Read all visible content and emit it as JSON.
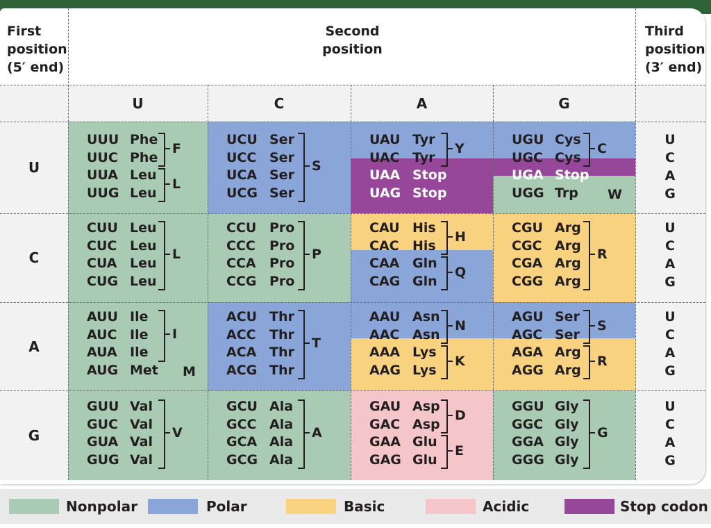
{
  "headers": {
    "first": [
      "First",
      "position",
      "(5′ end)"
    ],
    "second": [
      "Second",
      "position"
    ],
    "third": [
      "Third",
      "position",
      "(3′ end)"
    ]
  },
  "second_bases": [
    "U",
    "C",
    "A",
    "G"
  ],
  "first_bases": [
    "U",
    "C",
    "A",
    "G"
  ],
  "third_bases": [
    "U",
    "C",
    "A",
    "G"
  ],
  "colors": {
    "Nonpolar": "#a9cbb3",
    "Polar": "#8aa6d8",
    "Basic": "#f8d27e",
    "Acidic": "#f4c6c9",
    "Stop codon": "#96479a"
  },
  "legend": [
    {
      "label": "Nonpolar",
      "class": "Nonpolar"
    },
    {
      "label": "Polar",
      "class": "Polar"
    },
    {
      "label": "Basic",
      "class": "Basic"
    },
    {
      "label": "Acidic",
      "class": "Acidic"
    },
    {
      "label": "Stop codon",
      "class": "Stop codon"
    }
  ],
  "cells": [
    [
      {
        "codons": [
          [
            "UUU",
            "Phe"
          ],
          [
            "UUC",
            "Phe"
          ],
          [
            "UUA",
            "Leu"
          ],
          [
            "UUG",
            "Leu"
          ]
        ],
        "bands": [
          {
            "rows": [
              0,
              3
            ],
            "class": "Nonpolar"
          }
        ],
        "groups": [
          {
            "rows": [
              0,
              1
            ],
            "letter": "F"
          },
          {
            "rows": [
              2,
              3
            ],
            "letter": "L"
          }
        ]
      },
      {
        "codons": [
          [
            "UCU",
            "Ser"
          ],
          [
            "UCC",
            "Ser"
          ],
          [
            "UCA",
            "Ser"
          ],
          [
            "UCG",
            "Ser"
          ]
        ],
        "bands": [
          {
            "rows": [
              0,
              3
            ],
            "class": "Polar"
          }
        ],
        "groups": [
          {
            "rows": [
              0,
              3
            ],
            "letter": "S"
          }
        ]
      },
      {
        "codons": [
          [
            "UAU",
            "Tyr"
          ],
          [
            "UAC",
            "Tyr"
          ],
          [
            "UAA",
            "Stop"
          ],
          [
            "UAG",
            "Stop"
          ]
        ],
        "bands": [
          {
            "rows": [
              0,
              1
            ],
            "class": "Polar"
          },
          {
            "rows": [
              2,
              3
            ],
            "class": "Stop codon"
          }
        ],
        "groups": [
          {
            "rows": [
              0,
              1
            ],
            "letter": "Y"
          }
        ]
      },
      {
        "codons": [
          [
            "UGU",
            "Cys"
          ],
          [
            "UGC",
            "Cys"
          ],
          [
            "UGA",
            "Stop"
          ],
          [
            "UGG",
            "Trp"
          ]
        ],
        "bands": [
          {
            "rows": [
              0,
              1
            ],
            "class": "Polar"
          },
          {
            "rows": [
              2,
              2
            ],
            "class": "Stop codon"
          },
          {
            "rows": [
              3,
              3
            ],
            "class": "Nonpolar"
          }
        ],
        "groups": [
          {
            "rows": [
              0,
              1
            ],
            "letter": "C"
          },
          {
            "rows": [
              3,
              3
            ],
            "letter": "W",
            "plain": true
          }
        ]
      }
    ],
    [
      {
        "codons": [
          [
            "CUU",
            "Leu"
          ],
          [
            "CUC",
            "Leu"
          ],
          [
            "CUA",
            "Leu"
          ],
          [
            "CUG",
            "Leu"
          ]
        ],
        "bands": [
          {
            "rows": [
              0,
              3
            ],
            "class": "Nonpolar"
          }
        ],
        "groups": [
          {
            "rows": [
              0,
              3
            ],
            "letter": "L"
          }
        ]
      },
      {
        "codons": [
          [
            "CCU",
            "Pro"
          ],
          [
            "CCC",
            "Pro"
          ],
          [
            "CCA",
            "Pro"
          ],
          [
            "CCG",
            "Pro"
          ]
        ],
        "bands": [
          {
            "rows": [
              0,
              3
            ],
            "class": "Nonpolar"
          }
        ],
        "groups": [
          {
            "rows": [
              0,
              3
            ],
            "letter": "P"
          }
        ]
      },
      {
        "codons": [
          [
            "CAU",
            "His"
          ],
          [
            "CAC",
            "His"
          ],
          [
            "CAA",
            "Gln"
          ],
          [
            "CAG",
            "Gln"
          ]
        ],
        "bands": [
          {
            "rows": [
              0,
              1
            ],
            "class": "Basic"
          },
          {
            "rows": [
              2,
              3
            ],
            "class": "Polar"
          }
        ],
        "groups": [
          {
            "rows": [
              0,
              1
            ],
            "letter": "H"
          },
          {
            "rows": [
              2,
              3
            ],
            "letter": "Q"
          }
        ]
      },
      {
        "codons": [
          [
            "CGU",
            "Arg"
          ],
          [
            "CGC",
            "Arg"
          ],
          [
            "CGA",
            "Arg"
          ],
          [
            "CGG",
            "Arg"
          ]
        ],
        "bands": [
          {
            "rows": [
              0,
              3
            ],
            "class": "Basic"
          }
        ],
        "groups": [
          {
            "rows": [
              0,
              3
            ],
            "letter": "R"
          }
        ]
      }
    ],
    [
      {
        "codons": [
          [
            "AUU",
            "Ile"
          ],
          [
            "AUC",
            "Ile"
          ],
          [
            "AUA",
            "Ile"
          ],
          [
            "AUG",
            "Met"
          ]
        ],
        "bands": [
          {
            "rows": [
              0,
              3
            ],
            "class": "Nonpolar"
          }
        ],
        "groups": [
          {
            "rows": [
              0,
              2
            ],
            "letter": "I"
          },
          {
            "rows": [
              3,
              3
            ],
            "letter": "M",
            "plain": true
          }
        ]
      },
      {
        "codons": [
          [
            "ACU",
            "Thr"
          ],
          [
            "ACC",
            "Thr"
          ],
          [
            "ACA",
            "Thr"
          ],
          [
            "ACG",
            "Thr"
          ]
        ],
        "bands": [
          {
            "rows": [
              0,
              3
            ],
            "class": "Polar"
          }
        ],
        "groups": [
          {
            "rows": [
              0,
              3
            ],
            "letter": "T"
          }
        ]
      },
      {
        "codons": [
          [
            "AAU",
            "Asn"
          ],
          [
            "AAC",
            "Asn"
          ],
          [
            "AAA",
            "Lys"
          ],
          [
            "AAG",
            "Lys"
          ]
        ],
        "bands": [
          {
            "rows": [
              0,
              1
            ],
            "class": "Polar"
          },
          {
            "rows": [
              2,
              3
            ],
            "class": "Basic"
          }
        ],
        "groups": [
          {
            "rows": [
              0,
              1
            ],
            "letter": "N"
          },
          {
            "rows": [
              2,
              3
            ],
            "letter": "K"
          }
        ]
      },
      {
        "codons": [
          [
            "AGU",
            "Ser"
          ],
          [
            "AGC",
            "Ser"
          ],
          [
            "AGA",
            "Arg"
          ],
          [
            "AGG",
            "Arg"
          ]
        ],
        "bands": [
          {
            "rows": [
              0,
              1
            ],
            "class": "Polar"
          },
          {
            "rows": [
              2,
              3
            ],
            "class": "Basic"
          }
        ],
        "groups": [
          {
            "rows": [
              0,
              1
            ],
            "letter": "S"
          },
          {
            "rows": [
              2,
              3
            ],
            "letter": "R"
          }
        ]
      }
    ],
    [
      {
        "codons": [
          [
            "GUU",
            "Val"
          ],
          [
            "GUC",
            "Val"
          ],
          [
            "GUA",
            "Val"
          ],
          [
            "GUG",
            "Val"
          ]
        ],
        "bands": [
          {
            "rows": [
              0,
              3
            ],
            "class": "Nonpolar"
          }
        ],
        "groups": [
          {
            "rows": [
              0,
              3
            ],
            "letter": "V"
          }
        ]
      },
      {
        "codons": [
          [
            "GCU",
            "Ala"
          ],
          [
            "GCC",
            "Ala"
          ],
          [
            "GCA",
            "Ala"
          ],
          [
            "GCG",
            "Ala"
          ]
        ],
        "bands": [
          {
            "rows": [
              0,
              3
            ],
            "class": "Nonpolar"
          }
        ],
        "groups": [
          {
            "rows": [
              0,
              3
            ],
            "letter": "A"
          }
        ]
      },
      {
        "codons": [
          [
            "GAU",
            "Asp"
          ],
          [
            "GAC",
            "Asp"
          ],
          [
            "GAA",
            "Glu"
          ],
          [
            "GAG",
            "Glu"
          ]
        ],
        "bands": [
          {
            "rows": [
              0,
              3
            ],
            "class": "Acidic"
          }
        ],
        "groups": [
          {
            "rows": [
              0,
              1
            ],
            "letter": "D"
          },
          {
            "rows": [
              2,
              3
            ],
            "letter": "E"
          }
        ]
      },
      {
        "codons": [
          [
            "GGU",
            "Gly"
          ],
          [
            "GGC",
            "Gly"
          ],
          [
            "GGA",
            "Gly"
          ],
          [
            "GGG",
            "Gly"
          ]
        ],
        "bands": [
          {
            "rows": [
              0,
              3
            ],
            "class": "Nonpolar"
          }
        ],
        "groups": [
          {
            "rows": [
              0,
              3
            ],
            "letter": "G"
          }
        ]
      }
    ]
  ]
}
